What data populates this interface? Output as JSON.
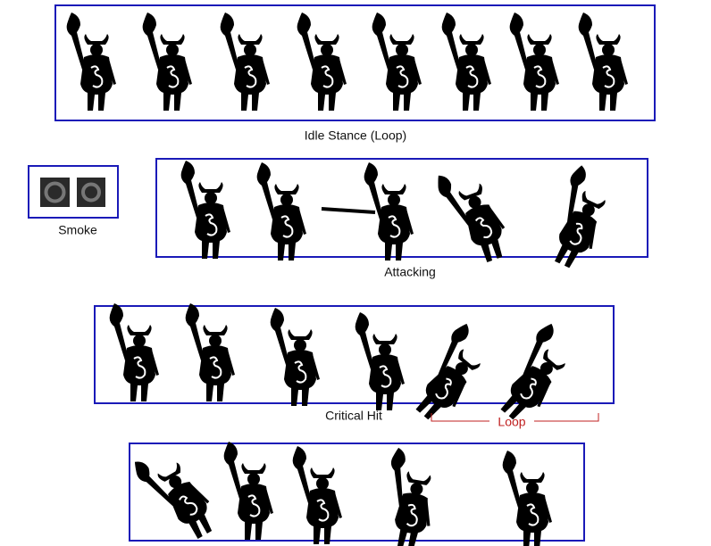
{
  "sections": {
    "idle": {
      "label": "Idle Stance (Loop)"
    },
    "smoke": {
      "label": "Smoke"
    },
    "attacking": {
      "label": "Attacking"
    },
    "critical": {
      "label": "Critical Hit",
      "annotation": "Loop"
    }
  }
}
